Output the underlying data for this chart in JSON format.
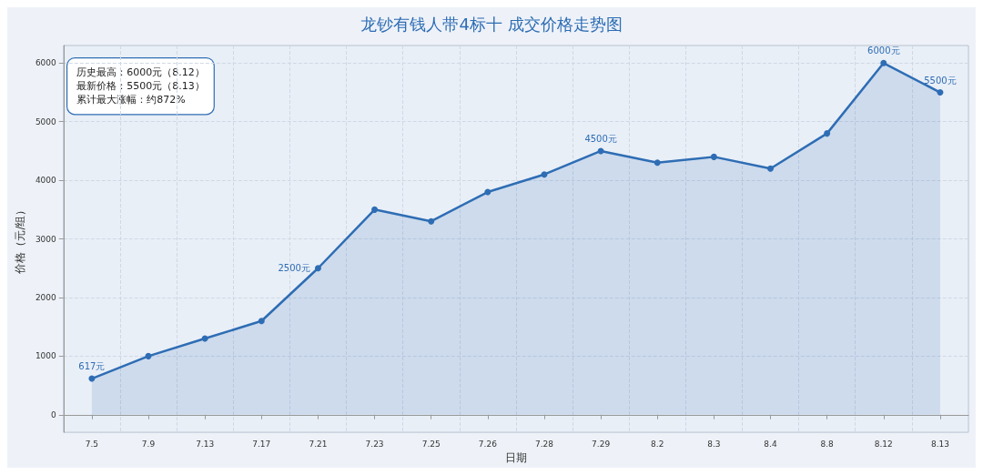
{
  "chart_data": {
    "type": "area",
    "title": "龙钞有钱人带4标十 成交价格走势图",
    "xlabel": "日期",
    "ylabel": "价格（元/组）",
    "categories": [
      "7.5",
      "7.9",
      "7.13",
      "7.17",
      "7.21",
      "7.23",
      "7.25",
      "7.26",
      "7.28",
      "7.29",
      "8.2",
      "8.3",
      "8.4",
      "8.8",
      "8.12",
      "8.13"
    ],
    "series": [
      {
        "color": "#2e6db4",
        "values": [
          617,
          1000,
          1300,
          1600,
          2500,
          3500,
          3300,
          3800,
          4100,
          4500,
          4300,
          4400,
          4200,
          4800,
          6000,
          5500
        ],
        "value_labels": [
          "617元",
          null,
          null,
          null,
          "2500元",
          null,
          null,
          null,
          null,
          "4500元",
          null,
          null,
          null,
          null,
          "6000元",
          "5500元"
        ]
      }
    ],
    "ylim": [
      -300,
      6300
    ],
    "yticks": [
      0,
      1000,
      2000,
      3000,
      4000,
      5000,
      6000
    ],
    "grid": true,
    "marker": "circle",
    "line_style": "solid",
    "annotations": [
      "历史最高：6000元（8.12）",
      "最新价格：5500元（8.13）",
      "累计最大涨幅：约872%"
    ]
  }
}
